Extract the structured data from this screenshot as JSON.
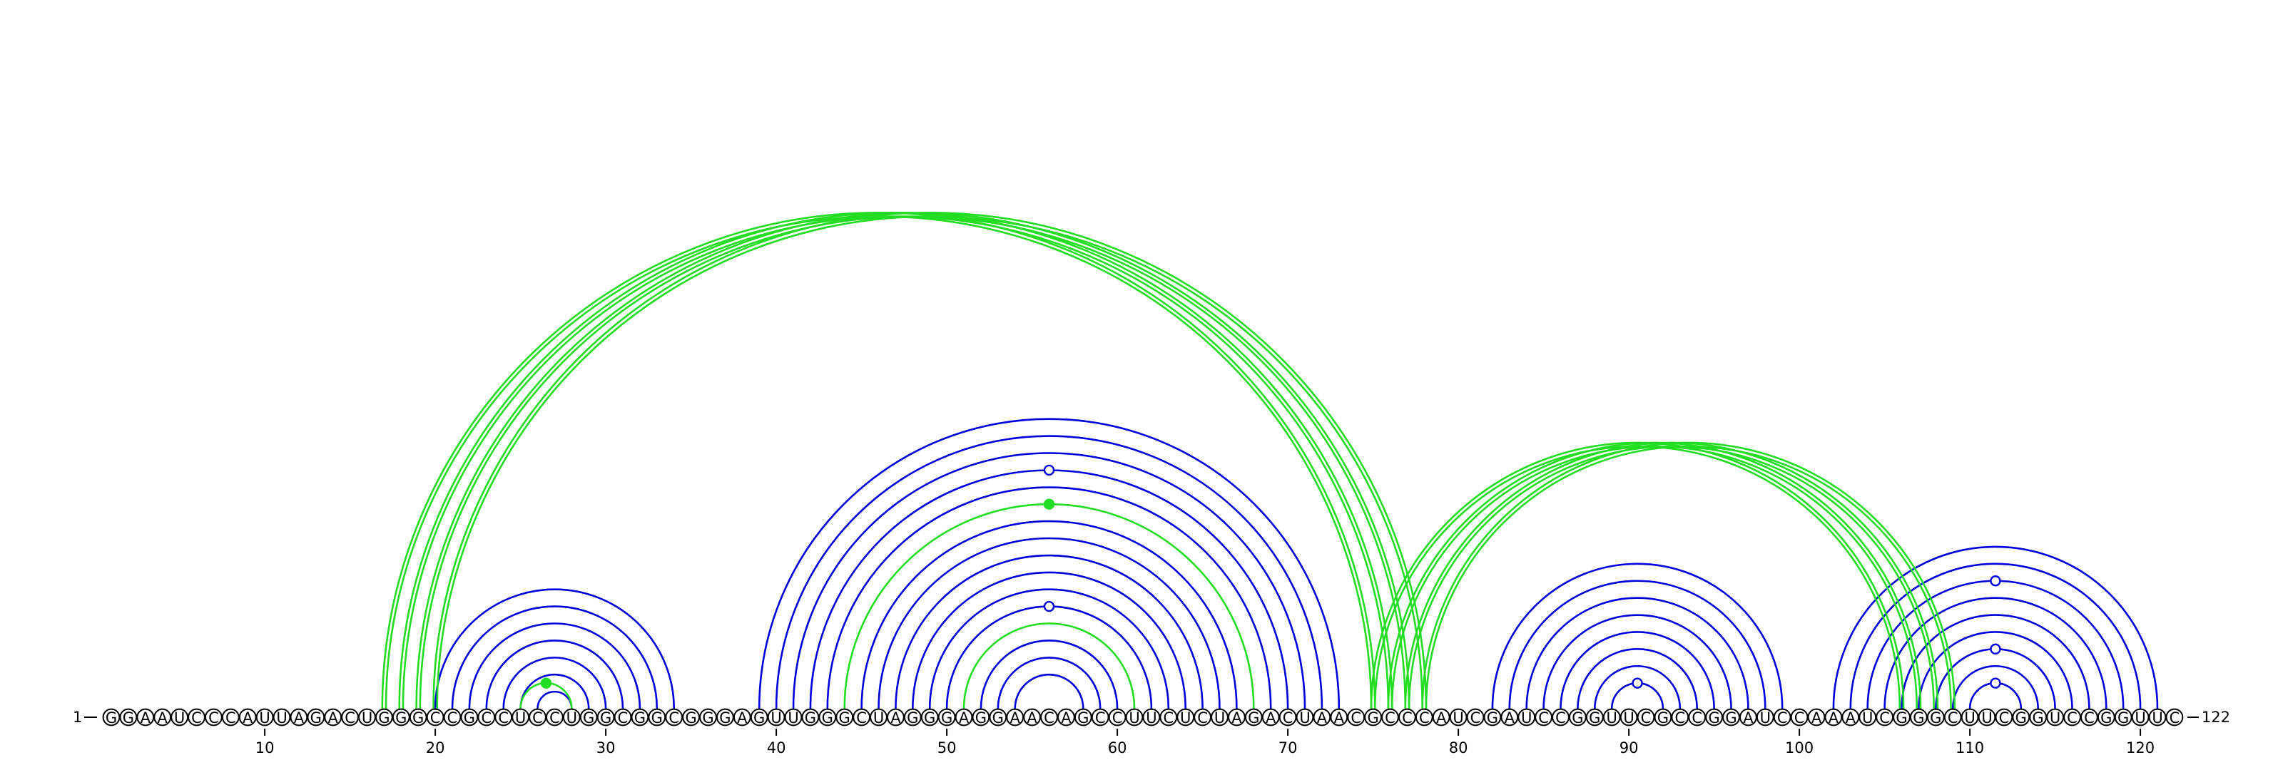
{
  "diagram": {
    "sequence": "GGAAUCCCAUUAGACUGGGCCGCCUCCUGGCGGCGGGAGUUGGGCUAGGGAGGAACAGCCUUCUCUAGACUAACGCCCAUCGAUCCGGUUCGCCGGAUCCAAAUCGGGCUUCGGUCCGGUUC",
    "start_label": "1",
    "end_label": "122",
    "tick_labels": [
      "10",
      "20",
      "30",
      "40",
      "50",
      "60",
      "70",
      "80",
      "90",
      "100",
      "110",
      "120"
    ],
    "tick_positions": [
      10,
      20,
      30,
      40,
      50,
      60,
      70,
      80,
      90,
      100,
      110,
      120
    ],
    "colors": {
      "canonical": "#0000dd",
      "noncanonical": "#22dd22",
      "base_outline": "#000000"
    },
    "pairs": [
      {
        "i": 20,
        "j": 34,
        "type": "canonical"
      },
      {
        "i": 21,
        "j": 33,
        "type": "canonical"
      },
      {
        "i": 22,
        "j": 32,
        "type": "canonical"
      },
      {
        "i": 23,
        "j": 31,
        "type": "canonical"
      },
      {
        "i": 24,
        "j": 30,
        "type": "canonical"
      },
      {
        "i": 25,
        "j": 29,
        "type": "canonical"
      },
      {
        "i": 26,
        "j": 28,
        "type": "canonical"
      },
      {
        "i": 25,
        "j": 28,
        "type": "noncanonical",
        "mark": "filled"
      },
      {
        "i": 39,
        "j": 73,
        "type": "canonical"
      },
      {
        "i": 40,
        "j": 72,
        "type": "canonical"
      },
      {
        "i": 41,
        "j": 71,
        "type": "canonical"
      },
      {
        "i": 42,
        "j": 70,
        "type": "canonical",
        "mark": "open"
      },
      {
        "i": 43,
        "j": 69,
        "type": "canonical"
      },
      {
        "i": 44,
        "j": 68,
        "type": "noncanonical",
        "mark": "filled"
      },
      {
        "i": 45,
        "j": 67,
        "type": "canonical"
      },
      {
        "i": 46,
        "j": 66,
        "type": "canonical"
      },
      {
        "i": 47,
        "j": 65,
        "type": "canonical"
      },
      {
        "i": 48,
        "j": 64,
        "type": "canonical"
      },
      {
        "i": 49,
        "j": 63,
        "type": "canonical"
      },
      {
        "i": 50,
        "j": 62,
        "type": "canonical",
        "mark": "open"
      },
      {
        "i": 51,
        "j": 61,
        "type": "noncanonical"
      },
      {
        "i": 52,
        "j": 60,
        "type": "canonical"
      },
      {
        "i": 53,
        "j": 59,
        "type": "canonical"
      },
      {
        "i": 54,
        "j": 58,
        "type": "canonical"
      },
      {
        "i": 82,
        "j": 99,
        "type": "canonical"
      },
      {
        "i": 83,
        "j": 98,
        "type": "canonical"
      },
      {
        "i": 84,
        "j": 97,
        "type": "canonical"
      },
      {
        "i": 85,
        "j": 96,
        "type": "canonical"
      },
      {
        "i": 86,
        "j": 95,
        "type": "canonical"
      },
      {
        "i": 87,
        "j": 94,
        "type": "canonical"
      },
      {
        "i": 88,
        "j": 93,
        "type": "canonical"
      },
      {
        "i": 89,
        "j": 92,
        "type": "canonical",
        "mark": "open"
      },
      {
        "i": 102,
        "j": 121,
        "type": "canonical"
      },
      {
        "i": 103,
        "j": 120,
        "type": "canonical"
      },
      {
        "i": 104,
        "j": 119,
        "type": "canonical",
        "mark": "open"
      },
      {
        "i": 105,
        "j": 118,
        "type": "canonical"
      },
      {
        "i": 106,
        "j": 117,
        "type": "canonical"
      },
      {
        "i": 107,
        "j": 116,
        "type": "canonical"
      },
      {
        "i": 108,
        "j": 115,
        "type": "canonical",
        "mark": "open"
      },
      {
        "i": 109,
        "j": 114,
        "type": "canonical"
      },
      {
        "i": 110,
        "j": 113,
        "type": "canonical",
        "mark": "open"
      },
      {
        "i": 17,
        "j": 75,
        "type": "noncanonical",
        "double": true
      },
      {
        "i": 18,
        "j": 76,
        "type": "noncanonical",
        "double": true
      },
      {
        "i": 19,
        "j": 77,
        "type": "noncanonical",
        "double": true
      },
      {
        "i": 20,
        "j": 78,
        "type": "noncanonical",
        "double": true
      },
      {
        "i": 75,
        "j": 106,
        "type": "noncanonical",
        "double": true
      },
      {
        "i": 76,
        "j": 107,
        "type": "noncanonical",
        "double": true
      },
      {
        "i": 77,
        "j": 108,
        "type": "noncanonical",
        "double": true
      },
      {
        "i": 78,
        "j": 109,
        "type": "noncanonical",
        "double": true
      }
    ]
  }
}
